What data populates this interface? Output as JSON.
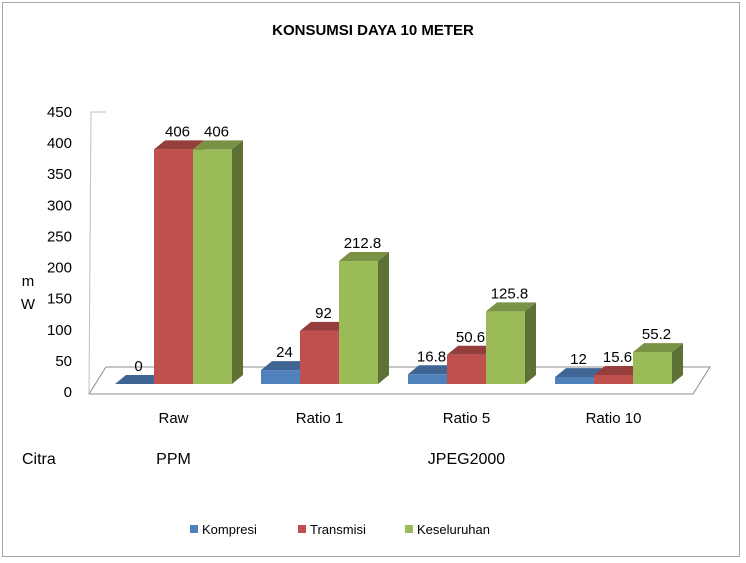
{
  "chart_data": {
    "type": "bar",
    "title": "KONSUMSI DAYA 10 METER",
    "ylabel_line1": "m",
    "ylabel_line2": "W",
    "xlabel": "Citra",
    "categories": [
      "Raw",
      "Ratio 1",
      "Ratio 5",
      "Ratio 10"
    ],
    "category_groups": [
      {
        "label": "PPM",
        "categories": [
          "Raw"
        ]
      },
      {
        "label": "JPEG2000",
        "categories": [
          "Ratio 1",
          "Ratio 5",
          "Ratio 10"
        ]
      }
    ],
    "series": [
      {
        "name": "Kompresi",
        "color": "#4f81bd",
        "values": [
          0,
          24,
          16.8,
          12
        ]
      },
      {
        "name": "Transmisi",
        "color": "#c0504d",
        "values": [
          406,
          92,
          50.6,
          15.6
        ]
      },
      {
        "name": "Keseluruhan",
        "color": "#9bbb59",
        "values": [
          406,
          212.8,
          125.8,
          55.2
        ]
      }
    ],
    "ylim": [
      0,
      450
    ],
    "yticks": [
      0,
      50,
      100,
      150,
      200,
      250,
      300,
      350,
      400,
      450
    ],
    "grid": false,
    "legend_position": "bottom",
    "style": "3d-clustered-column"
  }
}
